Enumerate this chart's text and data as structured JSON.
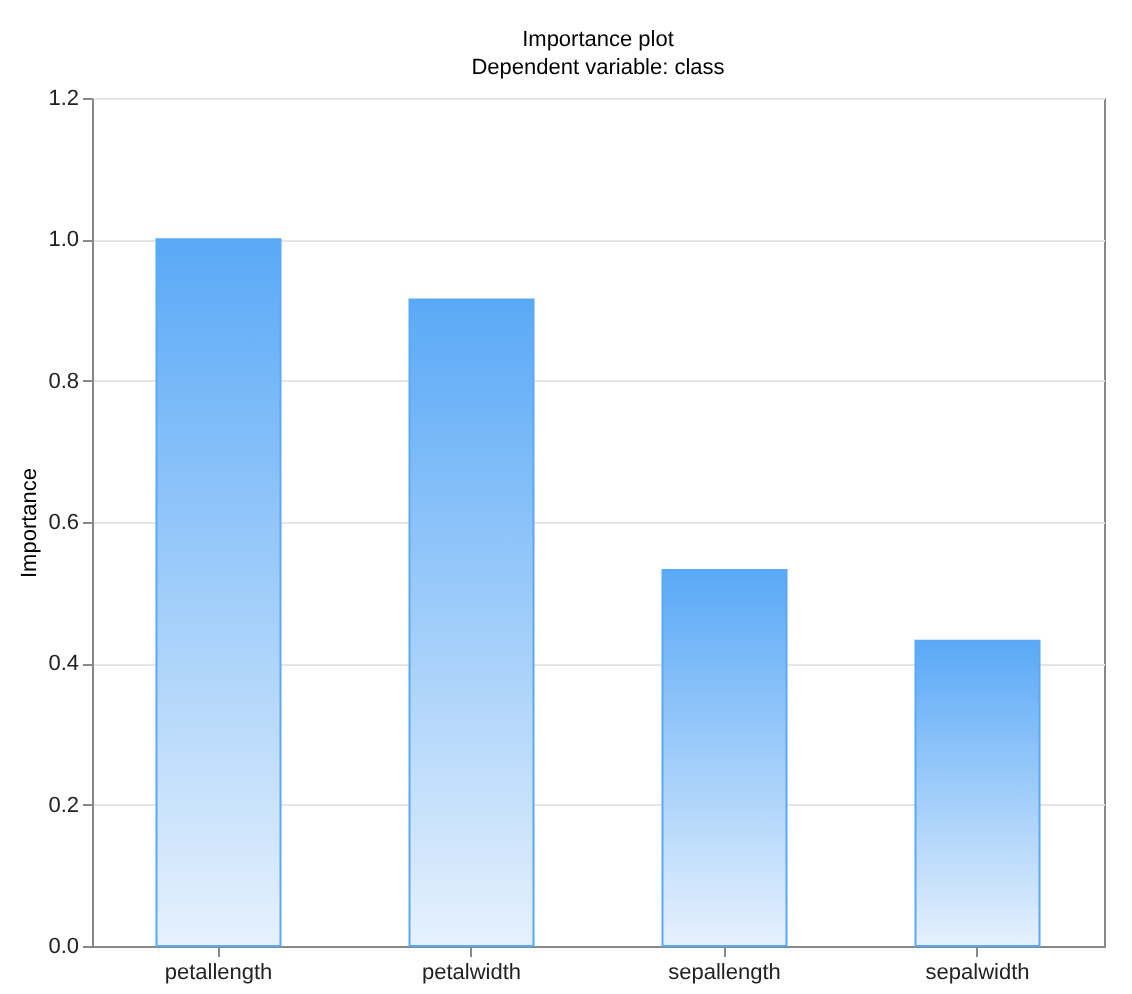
{
  "chart_data": {
    "type": "bar",
    "title": "Importance plot",
    "subtitle": "Dependent variable: class",
    "ylabel": "Importance",
    "categories": [
      "petallength",
      "petalwidth",
      "sepallength",
      "sepalwidth"
    ],
    "values": [
      1.0,
      0.915,
      0.532,
      0.432
    ],
    "color": "#5aa9f7",
    "ylim": [
      0,
      1.2
    ],
    "yticks": [
      {
        "value": 0,
        "label": "0.0"
      },
      0.2,
      0.4,
      0.6,
      0.8,
      {
        "value": 1,
        "label": "1.0"
      },
      1.2
    ],
    "grid": "y"
  }
}
